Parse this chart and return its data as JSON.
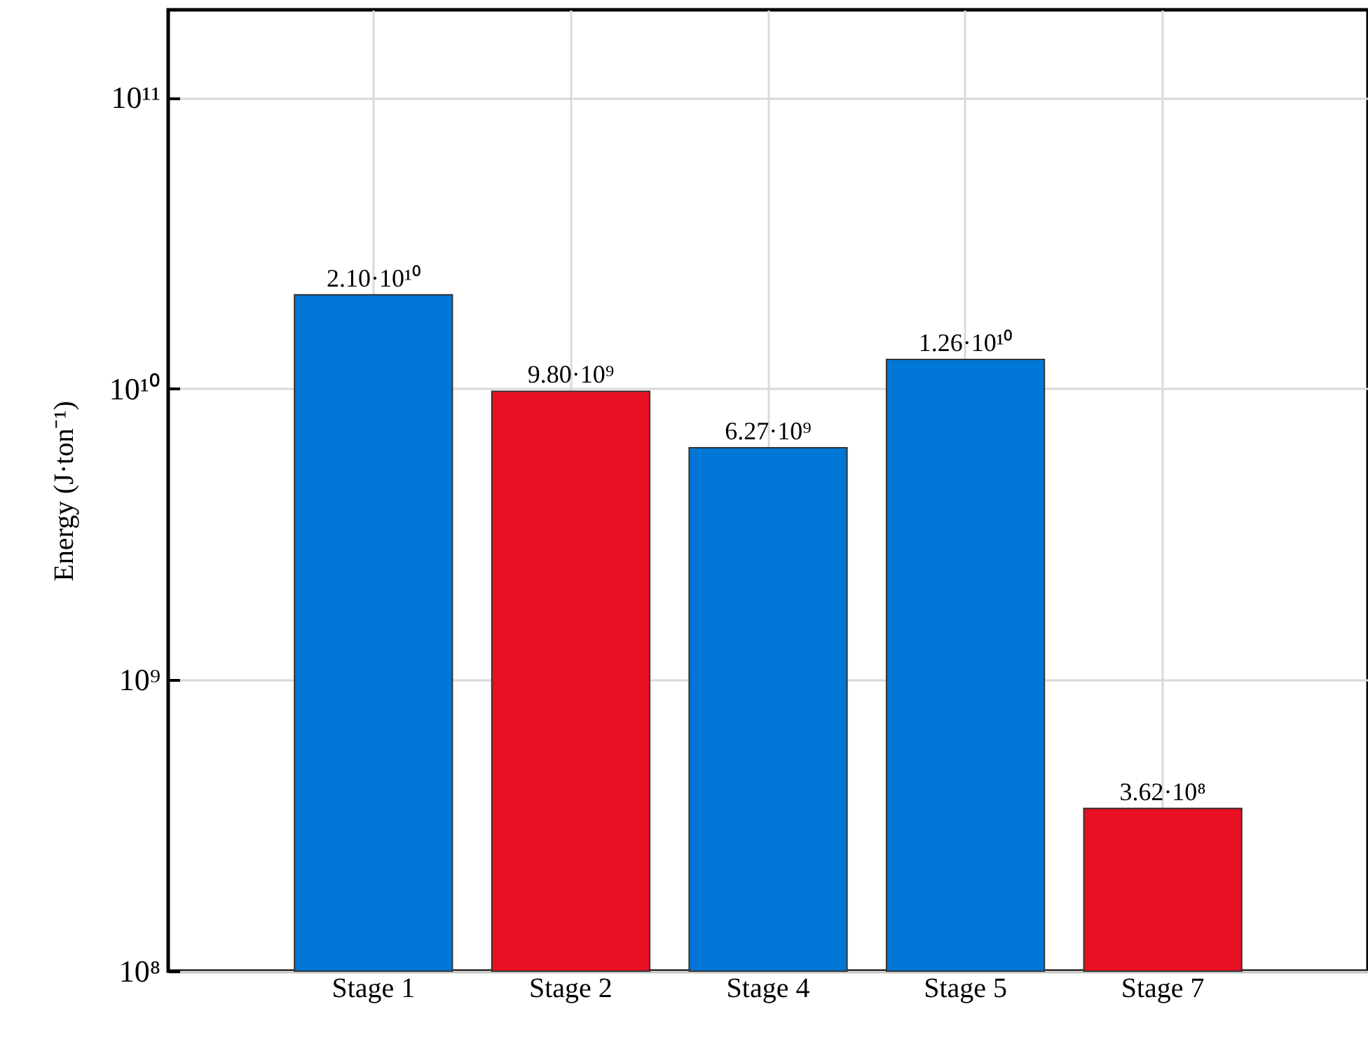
{
  "chart_data": {
    "type": "bar",
    "ylabel": "Energy (J·ton⁻¹)",
    "categories": [
      "Stage 1",
      "Stage 2",
      "Stage 4",
      "Stage 5",
      "Stage 7"
    ],
    "values": [
      21000000000.0,
      9800000000.0,
      6270000000.0,
      12600000000.0,
      362000000.0
    ],
    "colors": [
      "#0077d6",
      "#e81123",
      "#0077d6",
      "#0077d6",
      "#e81123"
    ],
    "value_labels": [
      "2.10·10¹⁰",
      "9.80·10⁹",
      "6.27·10⁹",
      "1.26·10¹⁰",
      "3.62·10⁸"
    ],
    "log": true,
    "ylim": [
      100000000.0,
      200000000000.0
    ],
    "yticks": [
      {
        "value": 100000000.0,
        "label": "10⁸"
      },
      {
        "value": 1000000000.0,
        "label": "10⁹"
      },
      {
        "value": 10000000000.0,
        "label": "10¹⁰"
      },
      {
        "value": 100000000000.0,
        "label": "10¹¹"
      }
    ],
    "grid": true
  }
}
